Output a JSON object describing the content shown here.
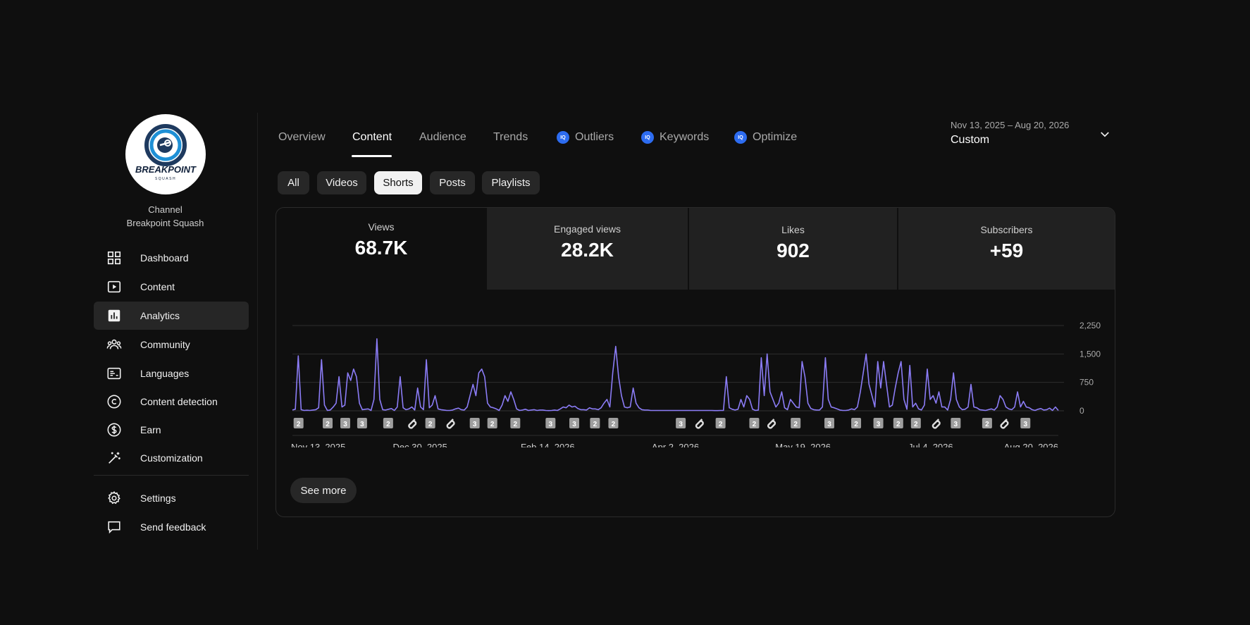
{
  "channel": {
    "label": "Channel",
    "name": "Breakpoint Squash",
    "logo_text": "BREAKPOINT",
    "logo_sub": "SQUASH"
  },
  "sidebar": {
    "items": [
      {
        "label": "Dashboard",
        "icon": "dashboard-icon"
      },
      {
        "label": "Content",
        "icon": "content-icon"
      },
      {
        "label": "Analytics",
        "icon": "analytics-icon",
        "active": true
      },
      {
        "label": "Community",
        "icon": "community-icon"
      },
      {
        "label": "Languages",
        "icon": "languages-icon"
      },
      {
        "label": "Content detection",
        "icon": "copyright-icon"
      },
      {
        "label": "Earn",
        "icon": "earn-icon"
      },
      {
        "label": "Customization",
        "icon": "customization-icon"
      }
    ],
    "bottom": [
      {
        "label": "Settings",
        "icon": "gear-icon"
      },
      {
        "label": "Send feedback",
        "icon": "feedback-icon"
      }
    ]
  },
  "tabs": [
    {
      "label": "Overview"
    },
    {
      "label": "Content",
      "active": true
    },
    {
      "label": "Audience"
    },
    {
      "label": "Trends"
    },
    {
      "label": "Outliers",
      "badge": "IQ"
    },
    {
      "label": "Keywords",
      "badge": "IQ"
    },
    {
      "label": "Optimize",
      "badge": "IQ"
    }
  ],
  "date_range": {
    "range": "Nov 13, 2025 – Aug 20, 2026",
    "preset": "Custom"
  },
  "filters": [
    {
      "label": "All"
    },
    {
      "label": "Videos"
    },
    {
      "label": "Shorts",
      "active": true
    },
    {
      "label": "Posts"
    },
    {
      "label": "Playlists"
    }
  ],
  "metrics": [
    {
      "label": "Views",
      "value": "68.7K"
    },
    {
      "label": "Engaged views",
      "value": "28.2K"
    },
    {
      "label": "Likes",
      "value": "902"
    },
    {
      "label": "Subscribers",
      "value": "+59"
    }
  ],
  "see_more": "See more",
  "colors": {
    "accent": "#8b7cf6",
    "iq_badge": "#2d6cf0",
    "background": "#0f0f0f"
  },
  "chart_data": {
    "type": "line",
    "series": [
      {
        "values": [
          20,
          40,
          1450,
          30,
          10,
          15,
          10,
          20,
          30,
          80,
          1350,
          150,
          10,
          20,
          100,
          200,
          900,
          100,
          150,
          1000,
          800,
          1100,
          900,
          200,
          30,
          40,
          50,
          10,
          300,
          1900,
          300,
          30,
          20,
          40,
          60,
          10,
          100,
          900,
          80,
          30,
          50,
          100,
          20,
          600,
          100,
          30,
          1350,
          80,
          150,
          400,
          50,
          30,
          20,
          10,
          10,
          20,
          50,
          70,
          30,
          20,
          100,
          400,
          700,
          400,
          1000,
          1100,
          900,
          200,
          100,
          80,
          50,
          10,
          150,
          400,
          250,
          500,
          300,
          50,
          10,
          20,
          40,
          10,
          20,
          30,
          10,
          20,
          20,
          10,
          5,
          10,
          20,
          10,
          50,
          100,
          80,
          150,
          100,
          120,
          60,
          30,
          30,
          20,
          80,
          50,
          50,
          30,
          80,
          200,
          300,
          100,
          1000,
          1700,
          900,
          400,
          100,
          80,
          100,
          600,
          200,
          80,
          30,
          20,
          20,
          10,
          10,
          10,
          10,
          10,
          10,
          10,
          10,
          10,
          10,
          10,
          10,
          10,
          10,
          10,
          10,
          10,
          10,
          10,
          10,
          10,
          10,
          5,
          5,
          10,
          10,
          900,
          80,
          40,
          20,
          40,
          300,
          100,
          400,
          300,
          40,
          10,
          20,
          1400,
          400,
          1500,
          500,
          300,
          100,
          200,
          500,
          80,
          30,
          300,
          200,
          100,
          80,
          1300,
          900,
          200,
          60,
          30,
          20,
          20,
          100,
          1400,
          300,
          100,
          80,
          50,
          20,
          10,
          10,
          20,
          50,
          30,
          100,
          500,
          1000,
          1500,
          700,
          400,
          100,
          1300,
          600,
          1300,
          700,
          100,
          150,
          600,
          1000,
          1300,
          300,
          40,
          1200,
          100,
          200,
          50,
          20,
          150,
          1100,
          300,
          400,
          200,
          500,
          100,
          100,
          20,
          300,
          1000,
          300,
          100,
          30,
          40,
          100,
          700,
          100,
          80,
          30,
          20,
          10,
          30,
          50,
          20,
          100,
          400,
          300,
          100,
          50,
          30,
          100,
          500,
          100,
          250,
          100,
          80,
          30,
          10,
          40,
          60,
          20,
          30,
          70,
          10,
          100,
          10
        ]
      }
    ],
    "x_ticks": [
      "Nov 13, 2025",
      "Dec 30, 2025",
      "Feb 14, 2026",
      "Apr 2, 2026",
      "May 19, 2026",
      "Jul 4, 2026",
      "Aug 20, 2026"
    ],
    "y_ticks": [
      "2,250",
      "1,500",
      "750",
      "0"
    ],
    "ylim": [
      0,
      2250
    ],
    "markers": [
      {
        "x": 0.008,
        "label": "2"
      },
      {
        "x": 0.046,
        "label": "2"
      },
      {
        "x": 0.069,
        "label": "3"
      },
      {
        "x": 0.091,
        "label": "3"
      },
      {
        "x": 0.125,
        "label": "2"
      },
      {
        "x": 0.158,
        "label": "link"
      },
      {
        "x": 0.18,
        "label": "2"
      },
      {
        "x": 0.208,
        "label": "link"
      },
      {
        "x": 0.238,
        "label": "3"
      },
      {
        "x": 0.261,
        "label": "2"
      },
      {
        "x": 0.291,
        "label": "2"
      },
      {
        "x": 0.337,
        "label": "3"
      },
      {
        "x": 0.368,
        "label": "3"
      },
      {
        "x": 0.395,
        "label": "2"
      },
      {
        "x": 0.419,
        "label": "2"
      },
      {
        "x": 0.507,
        "label": "3"
      },
      {
        "x": 0.533,
        "label": "link"
      },
      {
        "x": 0.559,
        "label": "2"
      },
      {
        "x": 0.603,
        "label": "2"
      },
      {
        "x": 0.627,
        "label": "link"
      },
      {
        "x": 0.657,
        "label": "2"
      },
      {
        "x": 0.701,
        "label": "3"
      },
      {
        "x": 0.736,
        "label": "2"
      },
      {
        "x": 0.765,
        "label": "3"
      },
      {
        "x": 0.791,
        "label": "2"
      },
      {
        "x": 0.814,
        "label": "2"
      },
      {
        "x": 0.842,
        "label": "link"
      },
      {
        "x": 0.866,
        "label": "3"
      },
      {
        "x": 0.907,
        "label": "2"
      },
      {
        "x": 0.931,
        "label": "link"
      },
      {
        "x": 0.957,
        "label": "3"
      }
    ],
    "grid": true
  }
}
